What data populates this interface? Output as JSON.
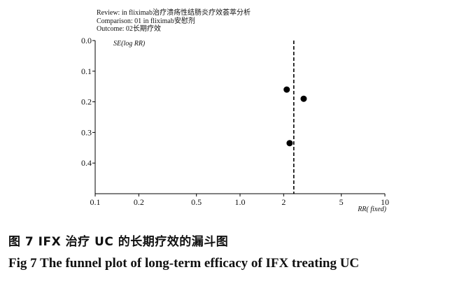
{
  "header": {
    "review": "Review: in  fliximab治疗溃疡性结肠炎疗效荟萃分析",
    "comparison": "Comparison: 01  in  fliximab安慰剂",
    "outcome": "Outcome: 02长期疗效"
  },
  "chart_data": {
    "type": "scatter",
    "title": "",
    "xlabel": "RR( fixed)",
    "ylabel": "SE(log  RR)",
    "x_scale": "log",
    "xlim": [
      0.1,
      10
    ],
    "ylim": [
      0.0,
      0.5
    ],
    "y_inverted": true,
    "xticks": [
      {
        "value": 0.1,
        "label": "0.1"
      },
      {
        "value": 0.2,
        "label": "0.2"
      },
      {
        "value": 0.5,
        "label": "0.5"
      },
      {
        "value": 1.0,
        "label": "1.0"
      },
      {
        "value": 2,
        "label": "2"
      },
      {
        "value": 5,
        "label": "5"
      },
      {
        "value": 10,
        "label": "10"
      }
    ],
    "yticks": [
      {
        "value": 0.0,
        "label": "0.0"
      },
      {
        "value": 0.1,
        "label": "0.1"
      },
      {
        "value": 0.2,
        "label": "0.2"
      },
      {
        "value": 0.3,
        "label": "0.3"
      },
      {
        "value": 0.4,
        "label": "0.4"
      }
    ],
    "pooled_estimate": 2.35,
    "reference_line_style": "dashed",
    "points": [
      {
        "x": 2.1,
        "y": 0.16
      },
      {
        "x": 2.75,
        "y": 0.19
      },
      {
        "x": 2.2,
        "y": 0.335
      }
    ],
    "point_color": "#000000",
    "axis_color": "#000000",
    "grid": false
  },
  "captions": {
    "chinese": "图 7   IFX 治疗 UC 的长期疗效的漏斗图",
    "english": "Fig 7   The funnel plot of long-term efficacy of IFX treating UC"
  }
}
